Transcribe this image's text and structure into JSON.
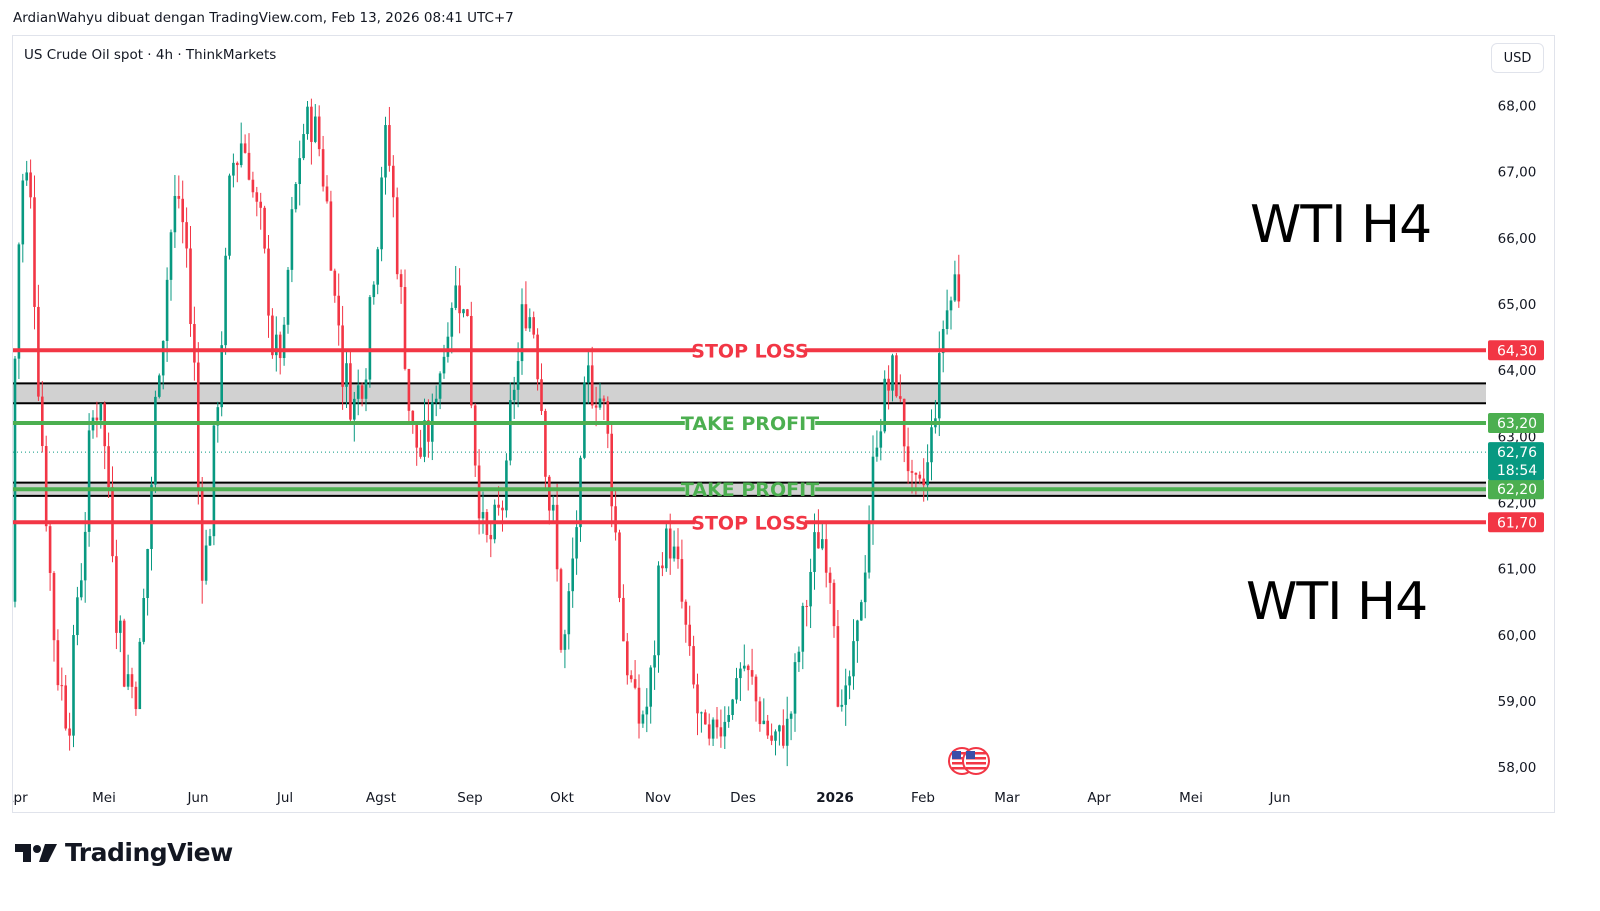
{
  "header": {
    "caption": "ArdianWahyu dibuat dengan TradingView.com, Feb 13, 2026 08:41 UTC+7"
  },
  "toolbar": {
    "symbol": "US Crude Oil spot · 4h · ThinkMarkets",
    "currency_button": "USD"
  },
  "annotations": {
    "title_top": "WTI H4",
    "title_bottom": "WTI H4"
  },
  "footer": {
    "brand": "TradingView"
  },
  "colors": {
    "up": "#089981",
    "down": "#f23645",
    "stop_loss": "#f23645",
    "take_profit": "#4caf50",
    "zone_fill": "#d1d1d1"
  },
  "chart_data": {
    "type": "candlestick",
    "timeframe": "4h",
    "currency": "USD",
    "ylim": [
      57.85,
      69.05
    ],
    "y_ticks": [
      "68,00",
      "67,00",
      "66,00",
      "65,00",
      "64,00",
      "63,00",
      "62,00",
      "61,00",
      "60,00",
      "59,00",
      "58,00"
    ],
    "x_ticks": [
      "Apr",
      "Mei",
      "Jun",
      "Jul",
      "Agst",
      "Sep",
      "Okt",
      "Nov",
      "Des",
      "2026",
      "Feb",
      "Mar",
      "Apr",
      "Mei",
      "Jun"
    ],
    "price_path": [
      {
        "month": "Apr",
        "low": 57.9,
        "high": 68.9,
        "close": 60.5
      },
      {
        "month": "Mei",
        "low": 57.9,
        "high": 64.6,
        "close": 61.5
      },
      {
        "month": "Jun",
        "low": 59.5,
        "high": 69.0,
        "close": 64.5
      },
      {
        "month": "Jul",
        "low": 63.8,
        "high": 68.3,
        "close": 65.5
      },
      {
        "month": "Agst",
        "low": 62.3,
        "high": 69.0,
        "close": 63.5
      },
      {
        "month": "Sep",
        "low": 61.2,
        "high": 65.5,
        "close": 62.5
      },
      {
        "month": "Okt",
        "low": 57.9,
        "high": 66.2,
        "close": 61.0
      },
      {
        "month": "Nov",
        "low": 57.9,
        "high": 62.4,
        "close": 58.5
      },
      {
        "month": "Des",
        "low": 57.9,
        "high": 59.7,
        "close": 58.2
      },
      {
        "month": "2026",
        "low": 57.9,
        "high": 62.5,
        "close": 60.5
      },
      {
        "month": "Feb",
        "low": 60.8,
        "high": 66.2,
        "close": 62.76
      }
    ],
    "levels": [
      {
        "label": "STOP LOSS",
        "price": 64.3,
        "price_label": "64,30",
        "color": "#f23645"
      },
      {
        "label": "TAKE PROFIT",
        "price": 63.2,
        "price_label": "63,20",
        "color": "#4caf50"
      },
      {
        "label": "TAKE PROFIT",
        "price": 62.2,
        "price_label": "62,20",
        "color": "#4caf50"
      },
      {
        "label": "STOP LOSS",
        "price": 61.7,
        "price_label": "61,70",
        "color": "#f23645"
      }
    ],
    "zones": [
      {
        "from": 63.5,
        "to": 63.8,
        "fill": "#d1d1d1"
      },
      {
        "from": 62.1,
        "to": 62.3,
        "fill": "#d1d1d1"
      }
    ],
    "current_price": {
      "price": 62.76,
      "price_label": "62,76",
      "countdown": "18:54",
      "color": "#089981"
    }
  }
}
